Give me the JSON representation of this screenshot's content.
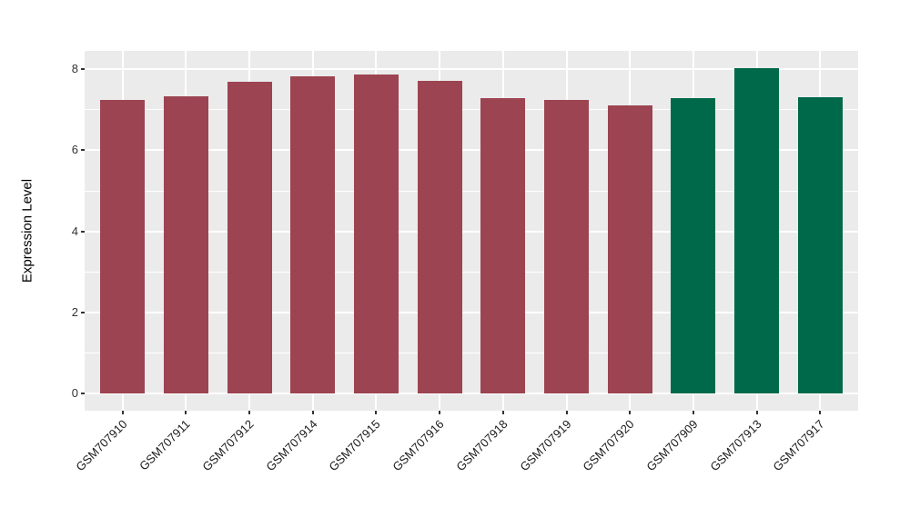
{
  "figure": {
    "background": "#FFFFFF"
  },
  "chart_data": {
    "type": "bar",
    "title": "",
    "xlabel": "",
    "ylabel": "Expression Level",
    "categories": [
      "GSM707910",
      "GSM707911",
      "GSM707912",
      "GSM707914",
      "GSM707915",
      "GSM707916",
      "GSM707918",
      "GSM707919",
      "GSM707920",
      "GSM707909",
      "GSM707913",
      "GSM707917"
    ],
    "values": [
      7.24,
      7.33,
      7.69,
      7.83,
      7.87,
      7.7,
      7.28,
      7.24,
      7.1,
      7.29,
      8.03,
      7.31
    ],
    "bar_colors": [
      "#9C4451",
      "#9C4451",
      "#9C4451",
      "#9C4451",
      "#9C4451",
      "#9C4451",
      "#9C4451",
      "#9C4451",
      "#9C4451",
      "#00694A",
      "#00694A",
      "#00694A"
    ],
    "group_colors": {
      "maroon": "#9C4451",
      "green": "#00694A"
    },
    "ylim": [
      -0.42,
      8.45
    ],
    "yticks": [
      0,
      2,
      4,
      6,
      8
    ],
    "yticks_minor": [
      1,
      3,
      5,
      7
    ],
    "grid": true,
    "legend_position": "none",
    "panel_bg": "#EBEBEB",
    "grid_color": "#FFFFFF",
    "axis_text_color": "#333333",
    "tick_mark_color": "#333333"
  }
}
